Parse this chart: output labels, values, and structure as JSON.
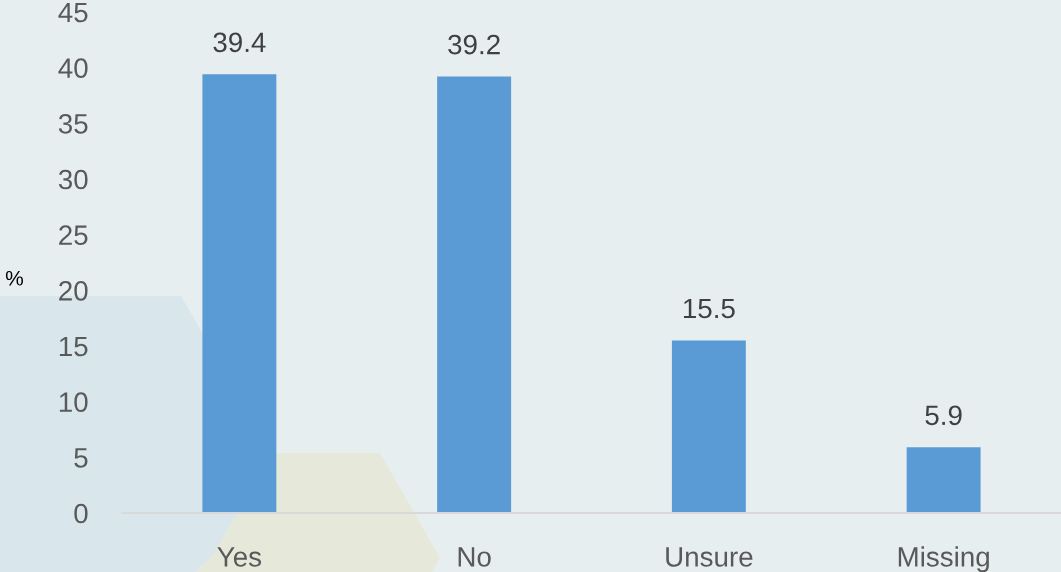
{
  "chart_data": {
    "type": "bar",
    "categories": [
      "Yes",
      "No",
      "Unsure",
      "Missing"
    ],
    "values": [
      39.4,
      39.2,
      15.5,
      5.9
    ],
    "color": "#5b9bd5",
    "ylabel": "%",
    "ylim": [
      0,
      45
    ],
    "yticks": [
      0,
      5,
      10,
      15,
      20,
      25,
      30,
      35,
      40,
      45
    ],
    "data_labels": true
  }
}
